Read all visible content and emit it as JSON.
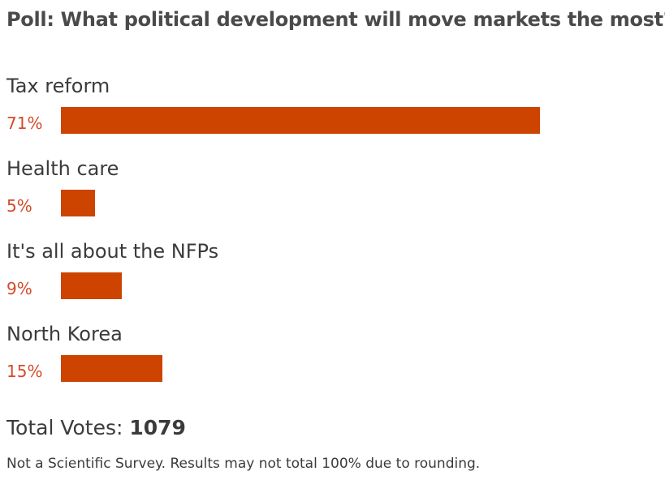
{
  "title": "Poll: What political development will move markets the most?",
  "chart_data": {
    "type": "bar",
    "title": "Poll: What political development will move markets the most?",
    "categories": [
      "Tax reform",
      "Health care",
      "It's all about the NFPs",
      "North Korea"
    ],
    "values": [
      71,
      5,
      9,
      15
    ],
    "value_labels": [
      "71%",
      "5%",
      "9%",
      "15%"
    ],
    "unit": "%",
    "orientation": "horizontal",
    "xlim": [
      0,
      100
    ],
    "bar_color": "#cc4400",
    "label_color": "#d44a2a",
    "grid": false
  },
  "total": {
    "label": "Total Votes:",
    "value": "1079"
  },
  "note": "Not a Scientific Survey. Results may not total 100% due to rounding."
}
